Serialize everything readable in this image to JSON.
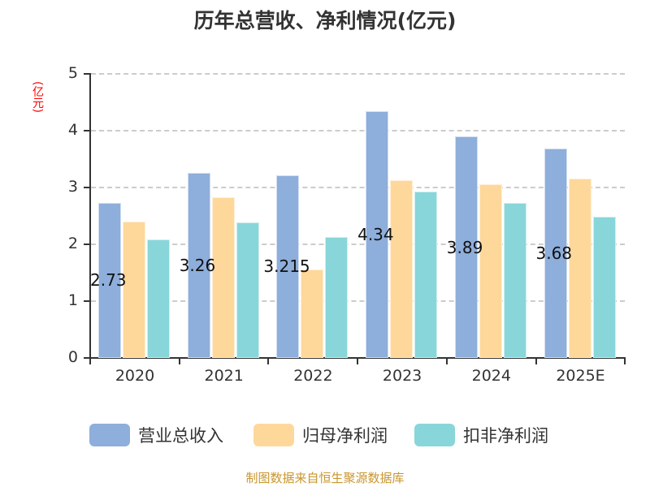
{
  "chart_data": {
    "type": "bar",
    "title": "历年总营收、净利情况(亿元)",
    "ylabel": "(亿元)",
    "xlabel": "",
    "ylim": [
      0,
      5
    ],
    "yticks": [
      "0",
      "1",
      "2",
      "3",
      "4",
      "5"
    ],
    "grid": true,
    "legend_position": "bottom",
    "categories": [
      "2020",
      "2021",
      "2022",
      "2023",
      "2024",
      "2025E"
    ],
    "series": [
      {
        "name": "营业总收入",
        "color": "#8eaedb",
        "values": [
          2.73,
          3.26,
          3.215,
          4.34,
          3.89,
          3.68
        ]
      },
      {
        "name": "归母净利润",
        "color": "#fed89b",
        "values": [
          2.4,
          2.83,
          1.55,
          3.12,
          3.05,
          3.16
        ]
      },
      {
        "name": "扣非净利润",
        "color": "#88d6d9",
        "values": [
          2.08,
          2.38,
          2.13,
          2.93,
          2.73,
          2.48
        ]
      }
    ],
    "data_labels": [
      "2.73",
      "3.26",
      "3.215",
      "4.34",
      "3.89",
      "3.68"
    ],
    "source": "制图数据来自恒生聚源数据库"
  },
  "title": "历年总营收、净利情况(亿元)",
  "unit_label": "(亿元)",
  "legend": [
    {
      "label": "营业总收入",
      "color": "#8eaedb"
    },
    {
      "label": "归母净利润",
      "color": "#fed89b"
    },
    {
      "label": "扣非净利润",
      "color": "#88d6d9"
    }
  ],
  "source": "制图数据来自恒生聚源数据库"
}
